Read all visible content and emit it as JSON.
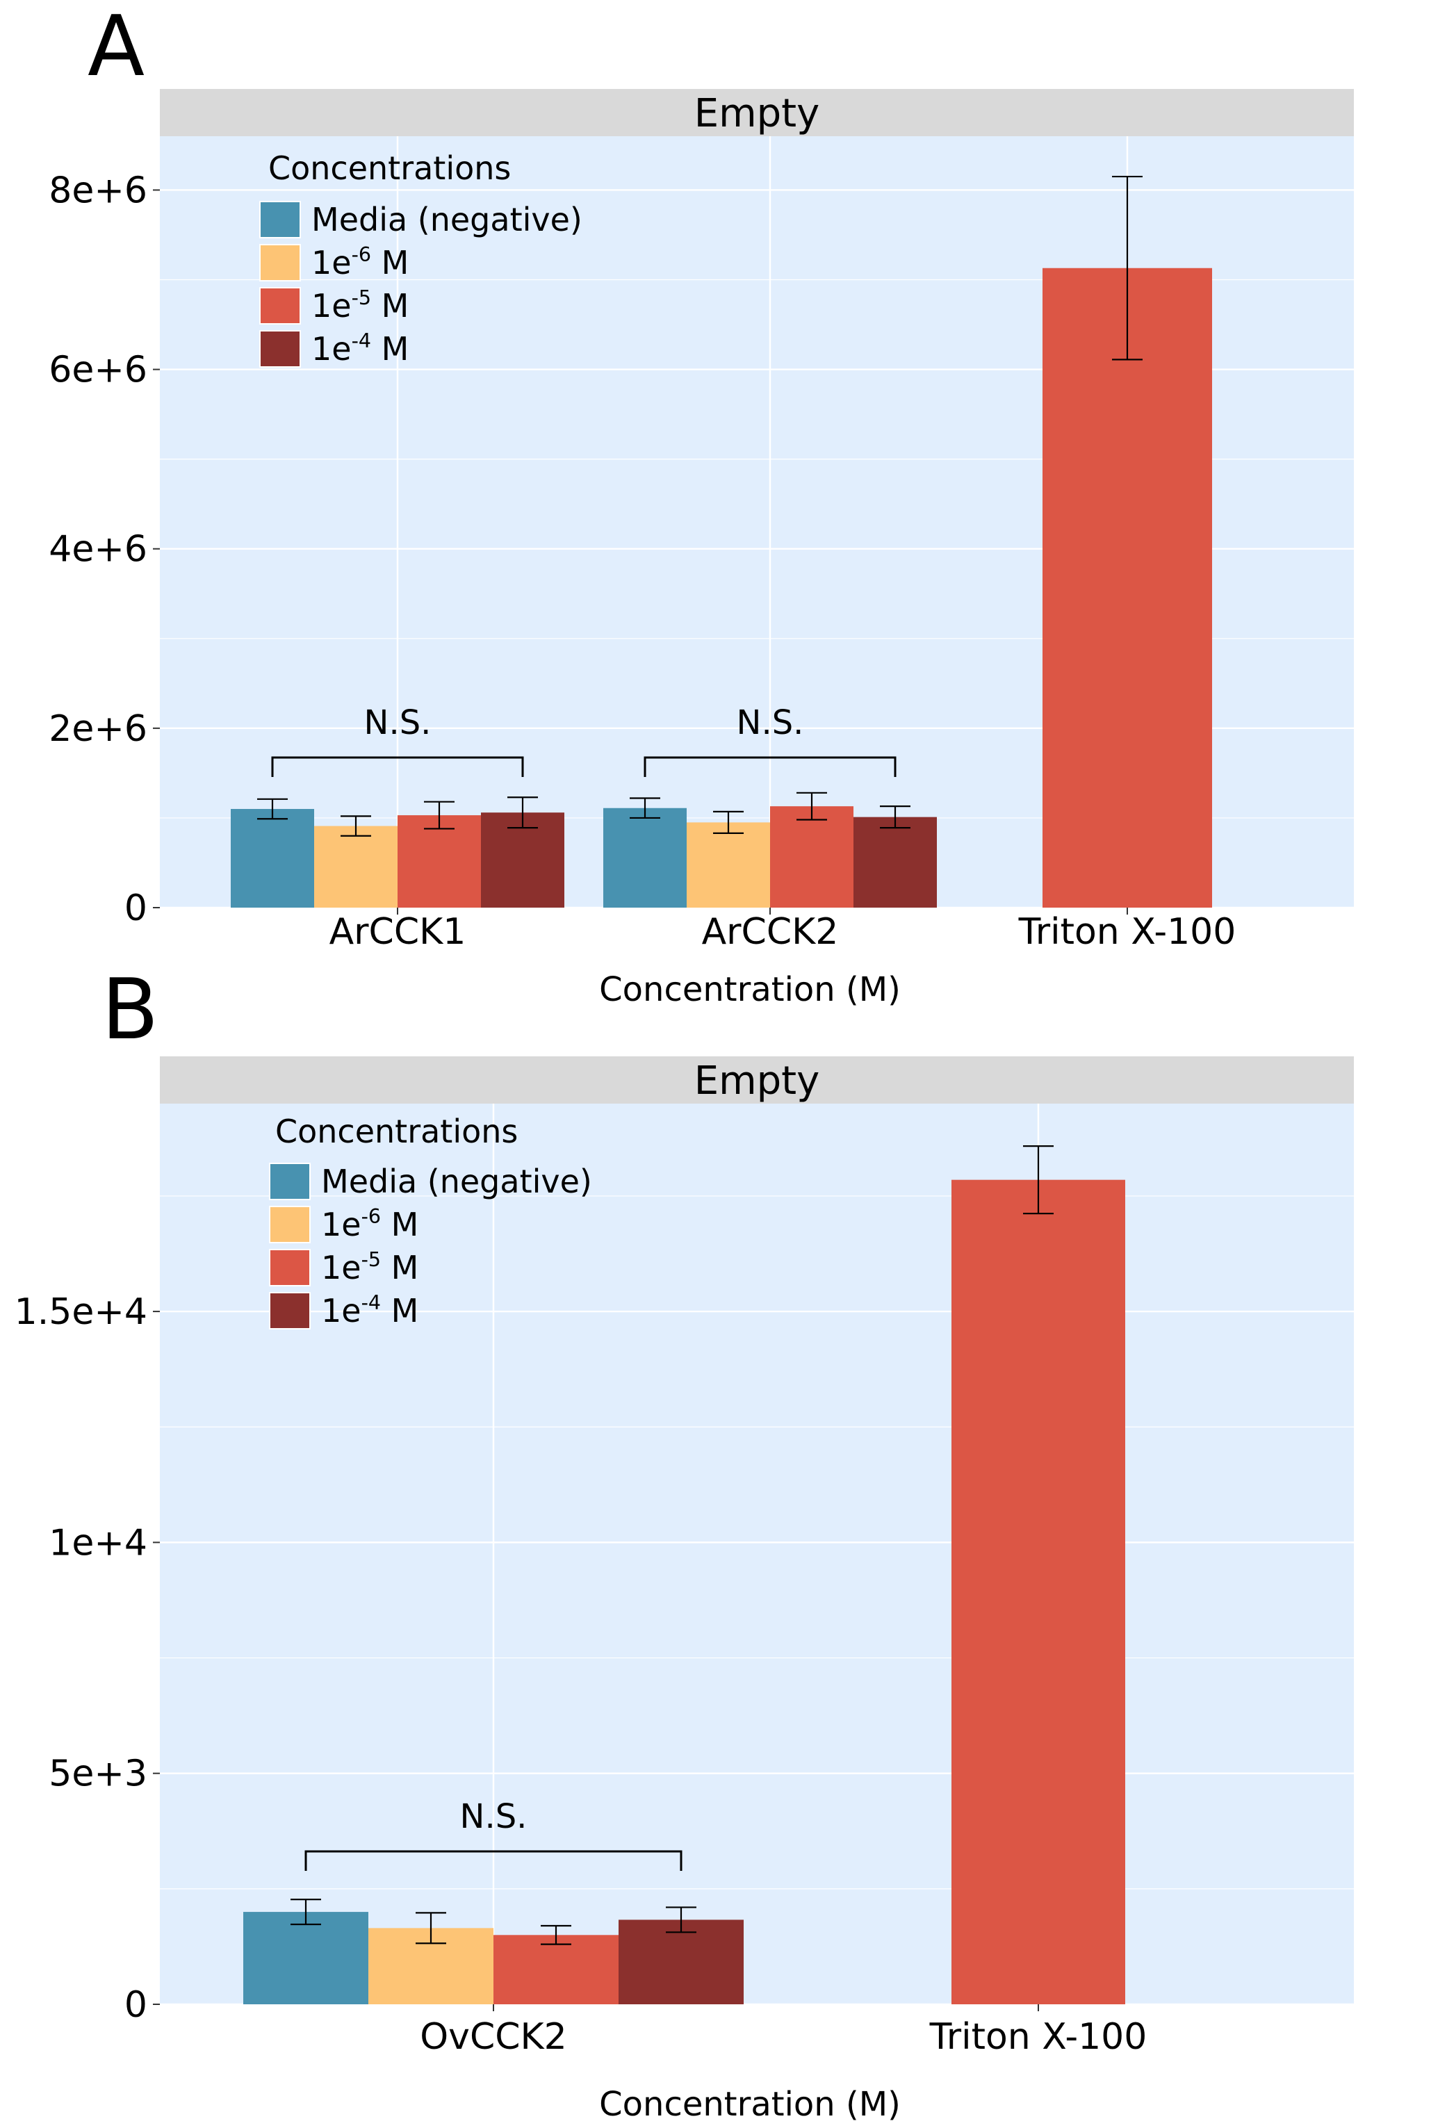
{
  "colors": {
    "panel_bg": "#e1eefd",
    "strip_bg": "#d9d9d9",
    "grid": "#ffffff",
    "series": [
      "#4892b0",
      "#fdc475",
      "#dc5645",
      "#8b302d"
    ],
    "error_bar": "#000000"
  },
  "chart_data": [
    {
      "panel_label": "A",
      "type": "bar",
      "facet_title": "Empty",
      "xlabel": "Concentration (M)",
      "ylabel": "",
      "ylim": [
        0,
        8600000
      ],
      "y_ticks": [
        0,
        2000000,
        4000000,
        6000000,
        8000000
      ],
      "y_tick_labels": [
        "0",
        "2e+6",
        "4e+6",
        "6e+6",
        "8e+6"
      ],
      "categories": [
        "ArCCK1",
        "ArCCK2",
        "Triton X-100"
      ],
      "legend": {
        "title": "Concentrations",
        "position": "top-left",
        "entries": [
          {
            "base": "Media (negative)",
            "sup": "",
            "unit": ""
          },
          {
            "base": "1e",
            "sup": "-6",
            "unit": " M"
          },
          {
            "base": "1e",
            "sup": "-5",
            "unit": " M"
          },
          {
            "base": "1e",
            "sup": "-4",
            "unit": " M"
          }
        ]
      },
      "series": [
        {
          "name": "Media (negative)",
          "values": [
            1100000,
            1110000,
            null
          ],
          "errors": [
            110000,
            110000,
            null
          ]
        },
        {
          "name": "1e-6 M",
          "values": [
            910000,
            950000,
            null
          ],
          "errors": [
            110000,
            120000,
            null
          ]
        },
        {
          "name": "1e-5 M",
          "values": [
            1030000,
            1130000,
            7130000
          ],
          "errors": [
            150000,
            150000,
            1020000
          ]
        },
        {
          "name": "1e-4 M",
          "values": [
            1060000,
            1010000,
            null
          ],
          "errors": [
            170000,
            120000,
            null
          ]
        }
      ],
      "annotations": [
        {
          "text": "N.S.",
          "category": 0
        },
        {
          "text": "N.S.",
          "category": 1
        }
      ]
    },
    {
      "panel_label": "B",
      "type": "bar",
      "facet_title": "Empty",
      "xlabel": "Concentration (M)",
      "ylabel": "",
      "ylim": [
        0,
        19500
      ],
      "y_ticks": [
        0,
        5000,
        10000,
        15000
      ],
      "y_tick_labels": [
        "0",
        "5e+3",
        "1e+4",
        "1.5e+4"
      ],
      "categories": [
        "OvCCK2",
        "Triton X-100"
      ],
      "legend": {
        "title": "Concentrations",
        "position": "top-left",
        "entries": [
          {
            "base": "Media (negative)",
            "sup": "",
            "unit": ""
          },
          {
            "base": "1e",
            "sup": "-6",
            "unit": " M"
          },
          {
            "base": "1e",
            "sup": "-5",
            "unit": " M"
          },
          {
            "base": "1e",
            "sup": "-4",
            "unit": " M"
          }
        ]
      },
      "series": [
        {
          "name": "Media (negative)",
          "values": [
            2000,
            null
          ],
          "errors": [
            270,
            null
          ]
        },
        {
          "name": "1e-6 M",
          "values": [
            1650,
            null
          ],
          "errors": [
            330,
            null
          ]
        },
        {
          "name": "1e-5 M",
          "values": [
            1500,
            17850
          ],
          "errors": [
            200,
            730
          ]
        },
        {
          "name": "1e-4 M",
          "values": [
            1830,
            null
          ],
          "errors": [
            270,
            null
          ]
        }
      ],
      "annotations": [
        {
          "text": "N.S.",
          "category": 0
        }
      ]
    }
  ]
}
